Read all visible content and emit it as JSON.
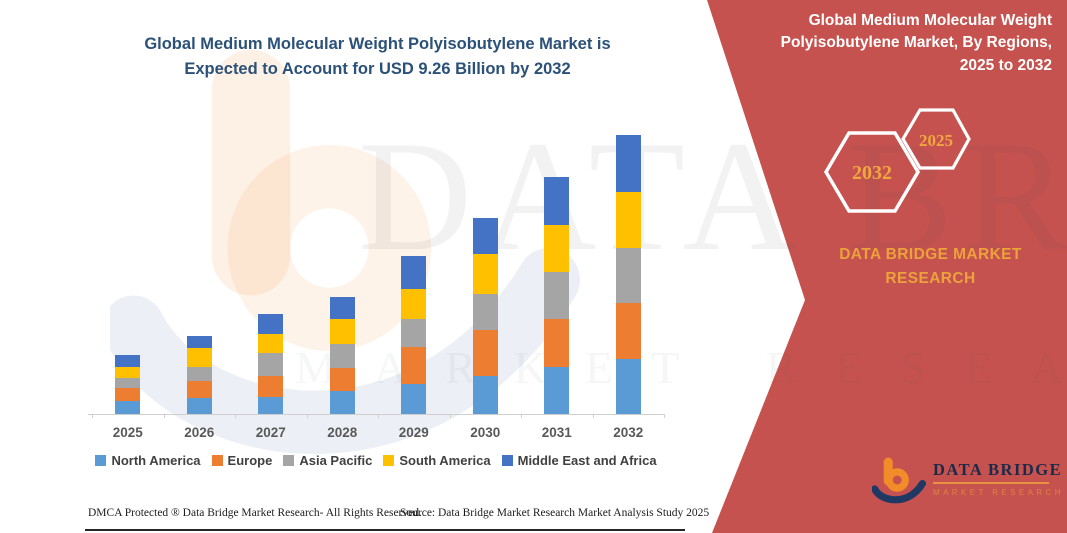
{
  "header": {
    "title_line1": "Global Medium Molecular Weight Polyisobutylene Market is",
    "title_line2": "Expected to Account for USD 9.26 Billion by 2032",
    "title_color": "#2B5178"
  },
  "panel": {
    "bg_color": "#C5524E",
    "title_lines": [
      "Global Medium Molecular Weight",
      "Polyisobutylene Market, By Regions,",
      "2025 to 2032"
    ],
    "hexagon_back_label": "2032",
    "hexagon_front_label": "2025",
    "hexagon_label_color": "#F0A73F",
    "brand_line1": "DATA BRIDGE MARKET",
    "brand_line2": "RESEARCH",
    "brand_color": "#EBA23C"
  },
  "chart_data": {
    "type": "bar",
    "stacked": true,
    "unit": "USD Billion",
    "title": "Global Medium Molecular Weight Polyisobutylene Market, By Regions, 2025 to 2032",
    "categories": [
      "2025",
      "2026",
      "2027",
      "2028",
      "2029",
      "2030",
      "2031",
      "2032"
    ],
    "series": [
      {
        "name": "North America",
        "color": "#5B9BD5",
        "values": [
          0.43,
          0.53,
          0.56,
          0.76,
          1.0,
          1.26,
          1.56,
          1.83
        ]
      },
      {
        "name": "Europe",
        "color": "#ED7D31",
        "values": [
          0.43,
          0.56,
          0.7,
          0.76,
          1.23,
          1.53,
          1.59,
          1.86
        ]
      },
      {
        "name": "Asia Pacific",
        "color": "#A5A5A5",
        "values": [
          0.33,
          0.46,
          0.76,
          0.8,
          0.93,
          1.2,
          1.56,
          1.83
        ]
      },
      {
        "name": "South America",
        "color": "#FFC000",
        "values": [
          0.37,
          0.63,
          0.63,
          0.83,
          1.0,
          1.33,
          1.56,
          1.86
        ]
      },
      {
        "name": "Middle East and Africa",
        "color": "#4472C4",
        "values": [
          0.4,
          0.4,
          0.66,
          0.73,
          1.1,
          1.2,
          1.59,
          1.88
        ]
      }
    ],
    "totals": [
      1.96,
      2.58,
      3.31,
      3.88,
      5.26,
      6.52,
      7.86,
      9.26
    ],
    "ylim": [
      0,
      9.77
    ],
    "gridlines": false,
    "legend_position": "bottom"
  },
  "watermark": {
    "text1": "DATA BRIDGE",
    "text2": "MARKET RESEARCH"
  },
  "footer": {
    "dmca": "DMCA Protected ® Data Bridge Market Research-  All Rights Reserved.",
    "source": "Source: Data Bridge Market Research  Market Analysis Study 2025"
  },
  "logo": {
    "name": "DATA BRIDGE",
    "subtitle": "MARKET RESEARCH"
  }
}
